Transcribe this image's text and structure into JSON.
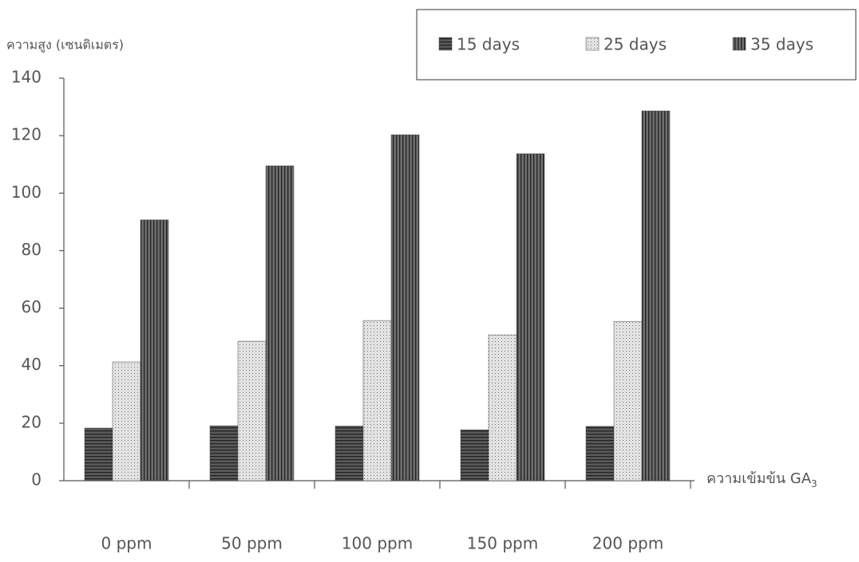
{
  "chart_data": {
    "type": "bar",
    "y_label": "ความสูง (เซนติเมตร)",
    "x_label": "ความเข้มข้น GA",
    "x_label_subscript": "3",
    "categories": [
      "0 ppm",
      "50 ppm",
      "100 ppm",
      "150 ppm",
      "200 ppm"
    ],
    "series": [
      {
        "name": "15 days",
        "color": "#5a5a5a",
        "values": [
          18.3,
          19.1,
          19,
          17.7,
          18.9
        ]
      },
      {
        "name": "25 days",
        "color": "#e2e2e2",
        "values": [
          41.3,
          48.5,
          55.7,
          50.7,
          55.4
        ]
      },
      {
        "name": "35 days",
        "color": "#6e6e6e",
        "values": [
          90.7,
          109.5,
          120.3,
          113.7,
          128.6
        ]
      }
    ],
    "ylim": [
      0,
      140
    ],
    "yticks": [
      0,
      20,
      40,
      60,
      80,
      100,
      120,
      140
    ],
    "grid": false,
    "legend": "top-right"
  }
}
